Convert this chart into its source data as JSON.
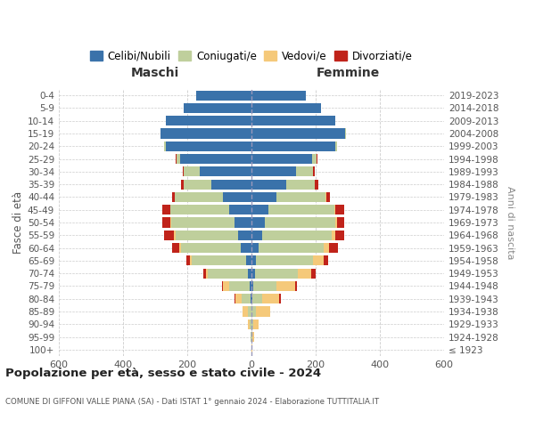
{
  "age_groups": [
    "100+",
    "95-99",
    "90-94",
    "85-89",
    "80-84",
    "75-79",
    "70-74",
    "65-69",
    "60-64",
    "55-59",
    "50-54",
    "45-49",
    "40-44",
    "35-39",
    "30-34",
    "25-29",
    "20-24",
    "15-19",
    "10-14",
    "5-9",
    "0-4"
  ],
  "birth_years": [
    "≤ 1923",
    "1924-1928",
    "1929-1933",
    "1934-1938",
    "1939-1943",
    "1944-1948",
    "1949-1953",
    "1954-1958",
    "1959-1963",
    "1964-1968",
    "1969-1973",
    "1974-1978",
    "1979-1983",
    "1984-1988",
    "1989-1993",
    "1994-1998",
    "1999-2003",
    "2004-2008",
    "2009-2013",
    "2014-2018",
    "2019-2023"
  ],
  "males": {
    "celibi": [
      0,
      0,
      0,
      0,
      2,
      5,
      10,
      18,
      32,
      42,
      52,
      70,
      90,
      125,
      162,
      222,
      268,
      282,
      268,
      212,
      172
    ],
    "coniugati": [
      0,
      2,
      5,
      12,
      28,
      65,
      125,
      168,
      188,
      195,
      198,
      182,
      148,
      85,
      48,
      12,
      5,
      2,
      0,
      0,
      0
    ],
    "vedovi": [
      0,
      2,
      6,
      15,
      20,
      18,
      8,
      6,
      5,
      4,
      3,
      2,
      0,
      0,
      0,
      0,
      0,
      0,
      0,
      0,
      0
    ],
    "divorziati": [
      0,
      0,
      0,
      0,
      2,
      5,
      8,
      12,
      22,
      30,
      25,
      25,
      10,
      10,
      5,
      2,
      0,
      0,
      0,
      0,
      0
    ]
  },
  "females": {
    "nubili": [
      0,
      0,
      0,
      0,
      2,
      5,
      10,
      15,
      22,
      32,
      42,
      52,
      78,
      108,
      140,
      190,
      262,
      292,
      262,
      218,
      170
    ],
    "coniugate": [
      0,
      2,
      5,
      15,
      32,
      72,
      135,
      178,
      202,
      218,
      218,
      205,
      152,
      88,
      52,
      14,
      5,
      2,
      0,
      0,
      0
    ],
    "vedove": [
      2,
      5,
      18,
      42,
      52,
      58,
      42,
      32,
      18,
      12,
      6,
      5,
      2,
      0,
      0,
      0,
      0,
      0,
      0,
      0,
      0
    ],
    "divorziate": [
      0,
      0,
      0,
      2,
      5,
      8,
      12,
      15,
      28,
      28,
      22,
      28,
      12,
      12,
      5,
      2,
      0,
      0,
      0,
      0,
      0
    ]
  },
  "colors": {
    "celibi": "#3A72AA",
    "coniugati": "#BFCF9C",
    "vedovi": "#F5C97A",
    "divorziati": "#C0231A"
  },
  "xlim": 600,
  "title_main": "Popolazione per età, sesso e stato civile - 2024",
  "title_sub": "COMUNE DI GIFFONI VALLE PIANA (SA) - Dati ISTAT 1° gennaio 2024 - Elaborazione TUTTITALIA.IT",
  "ylabel_left": "Fasce di età",
  "ylabel_right": "Anni di nascita",
  "label_maschi": "Maschi",
  "label_femmine": "Femmine",
  "legend_labels": [
    "Celibi/Nubili",
    "Coniugati/e",
    "Vedovi/e",
    "Divorziati/e"
  ],
  "bg_color": "#ffffff",
  "grid_color": "#cccccc"
}
